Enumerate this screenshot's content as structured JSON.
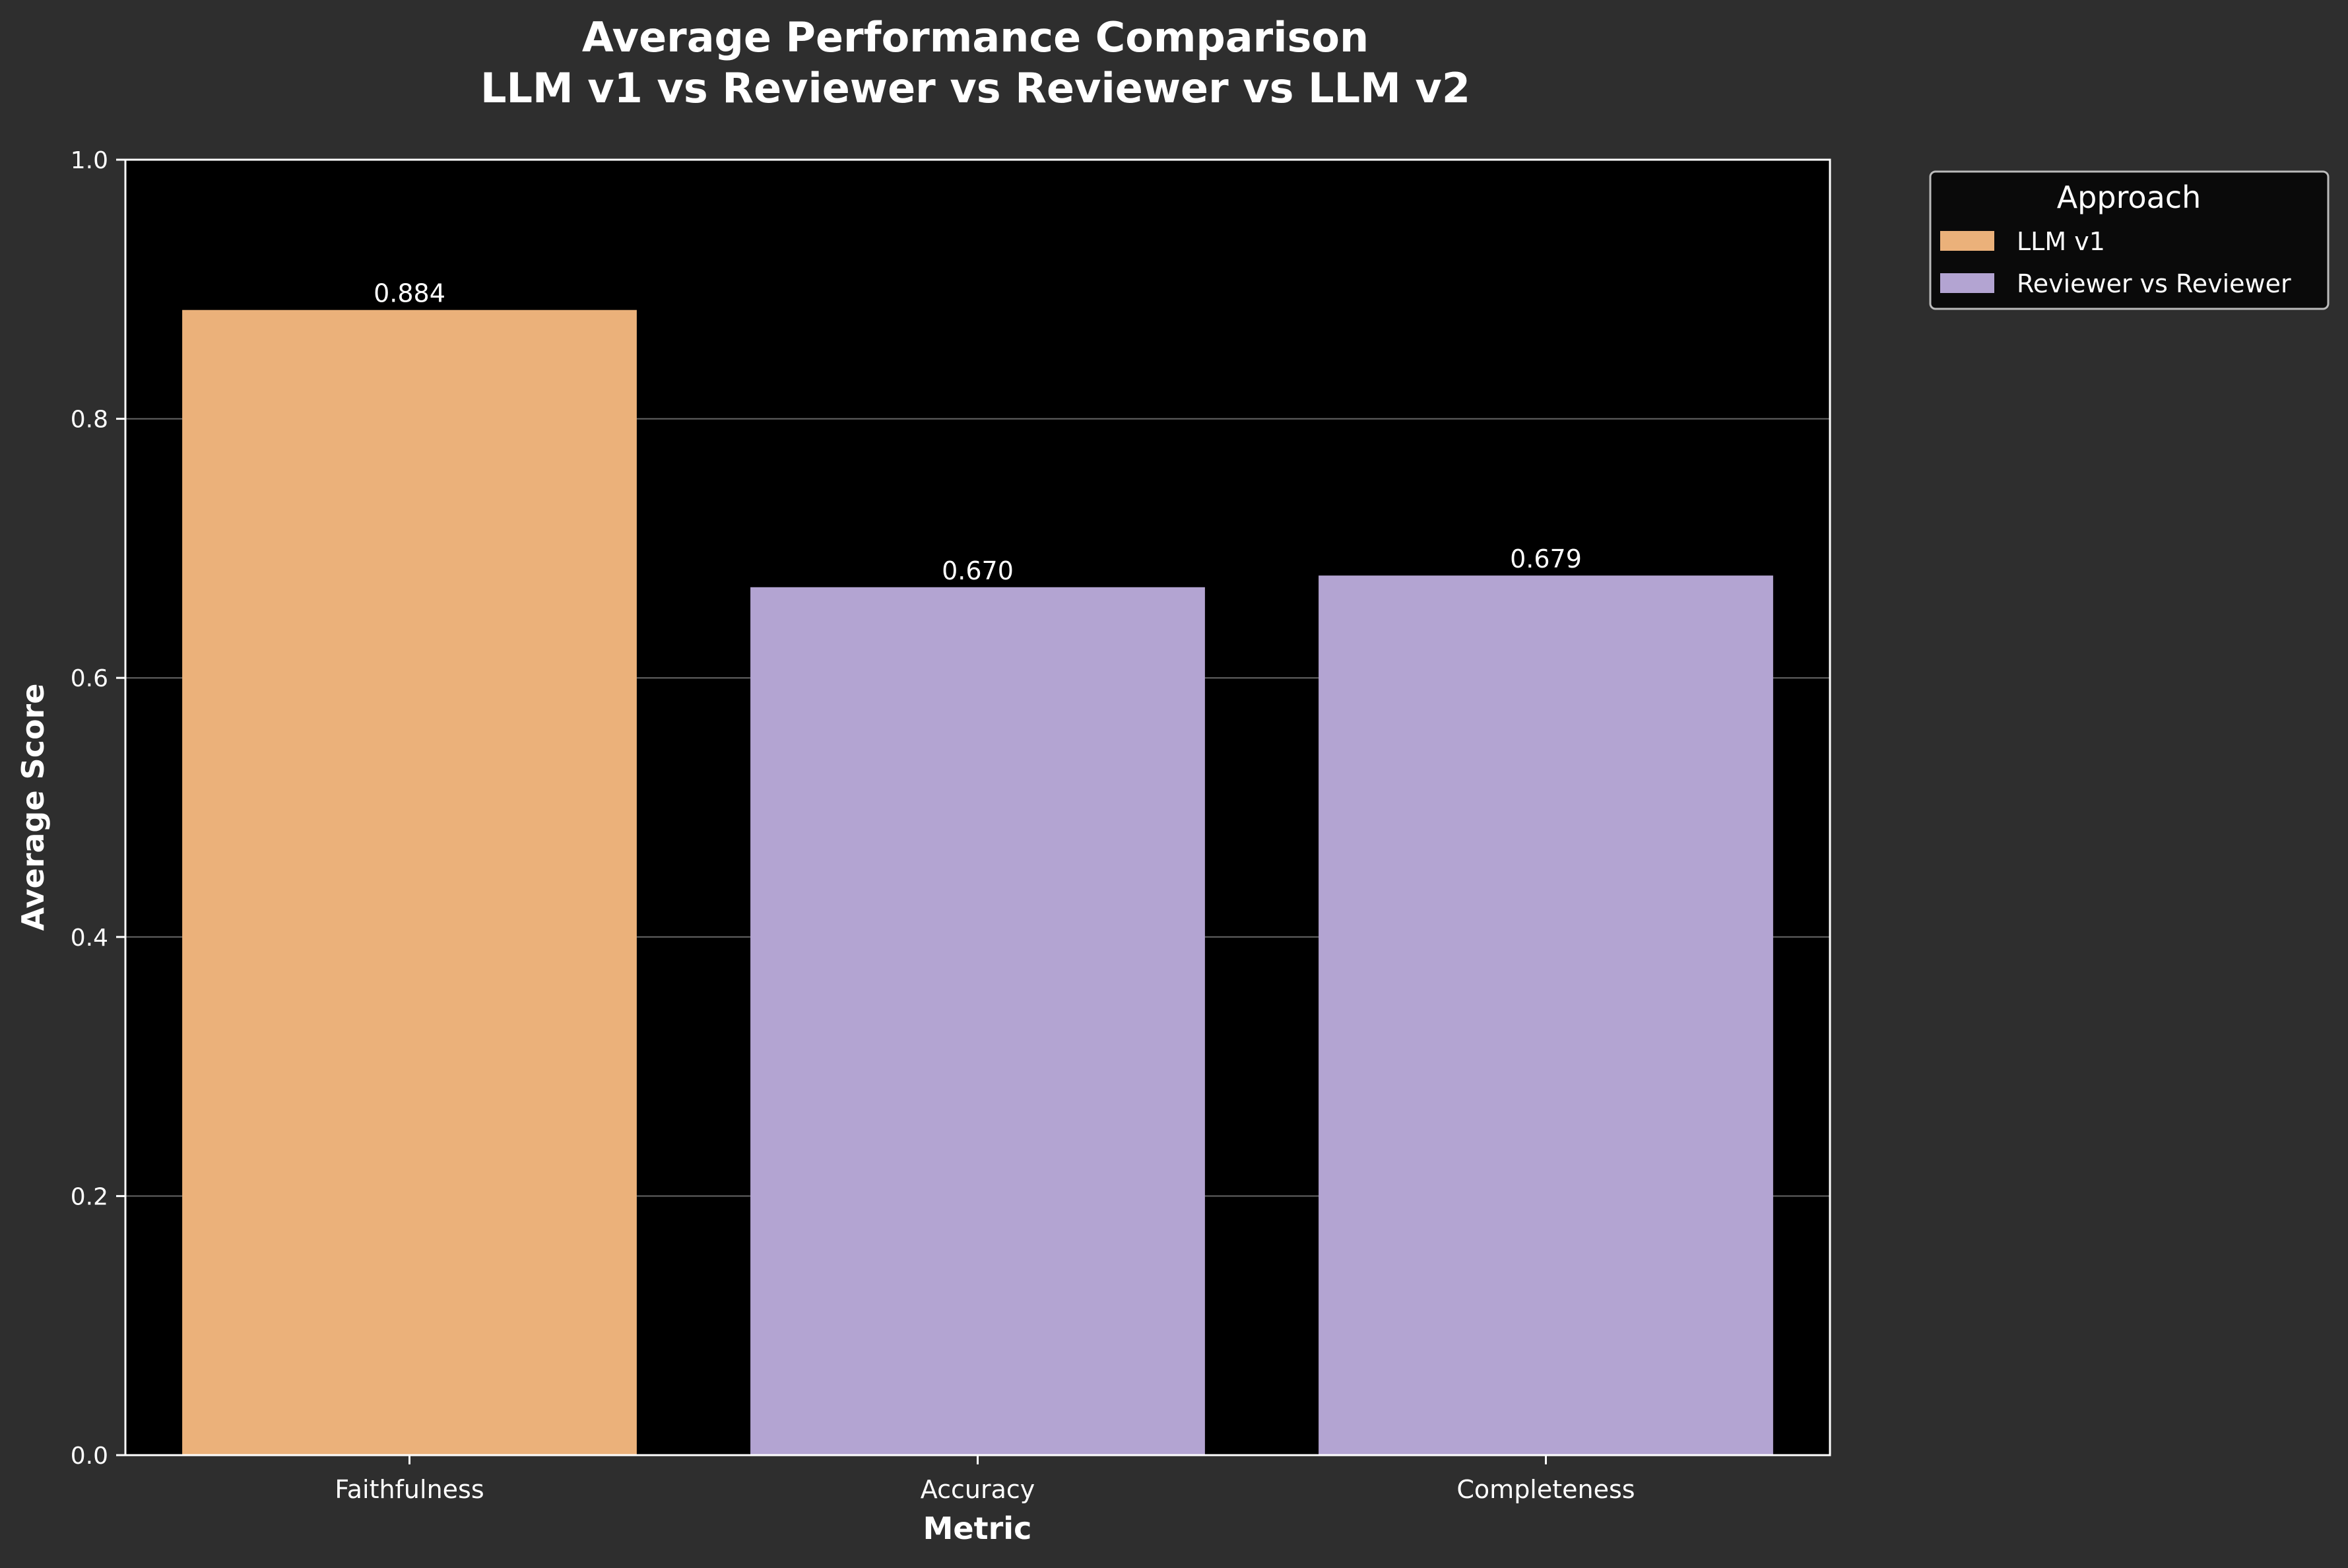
{
  "chart_data": {
    "type": "bar",
    "title_line1": "Average Performance Comparison",
    "title_line2": "LLM v1 vs Reviewer vs Reviewer vs LLM v2",
    "xlabel": "Metric",
    "ylabel": "Average Score",
    "ylim": [
      0,
      1.0
    ],
    "yticks": [
      "0.0",
      "0.2",
      "0.4",
      "0.6",
      "0.8",
      "1.0"
    ],
    "ytick_values": [
      0,
      0.2,
      0.4,
      0.6,
      0.8,
      1.0
    ],
    "categories": [
      "Faithfulness",
      "Accuracy",
      "Completeness"
    ],
    "values": [
      0.884,
      0.67,
      0.679
    ],
    "value_labels": [
      "0.884",
      "0.670",
      "0.679"
    ],
    "bar_series": [
      "LLM v1",
      "Reviewer vs Reviewer",
      "Reviewer vs Reviewer"
    ],
    "grid": "horizontal",
    "legend": {
      "title": "Approach",
      "placement": "outside-top-right",
      "entries": [
        {
          "name": "LLM v1",
          "color": "#ebb17a"
        },
        {
          "name": "Reviewer vs Reviewer",
          "color": "#b3a4d2"
        }
      ]
    },
    "colors": {
      "figure_bg": "#2e2e2e",
      "plot_bg": "#000000",
      "text": "#ffffff",
      "grid": "#666666"
    }
  }
}
